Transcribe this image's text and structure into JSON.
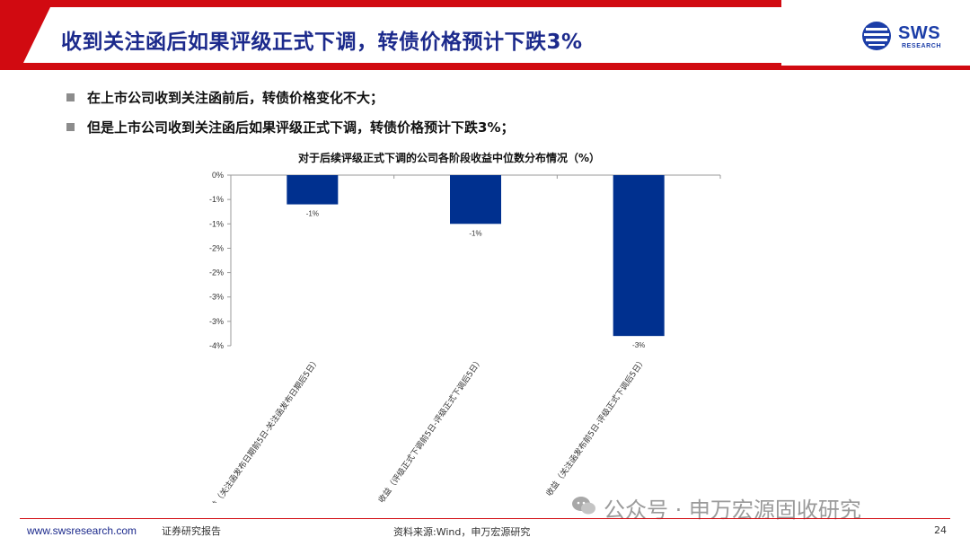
{
  "header": {
    "title": "收到关注函后如果评级正式下调，转债价格预计下跌3%",
    "logo_text": "SWS",
    "logo_sub": "RESEARCH"
  },
  "bullets": [
    "在上市公司收到关注函前后，转债价格变化不大；",
    "但是上市公司收到关注函后如果评级正式下调，转债价格预计下跌3%；"
  ],
  "chart_data": {
    "type": "bar",
    "title": "对于后续评级正式下调的公司各阶段收益中位数分布情况（%）",
    "categories": [
      "收益（关注函发布日期前5日-关注函发布日期后5日）",
      "收益（评级正式下调前5日-评级正式下调后5日）",
      "收益（关注函发布前5日-评级正式下调后5日）"
    ],
    "values": [
      -0.6,
      -1.0,
      -3.3
    ],
    "data_labels": [
      "-1%",
      "-1%",
      "-3%"
    ],
    "y_ticks": [
      "0%",
      "-1%",
      "-1%",
      "-2%",
      "-2%",
      "-3%",
      "-3%",
      "-4%"
    ],
    "ylim": [
      -3.5,
      0
    ],
    "bar_color": "#00308f",
    "grid": false
  },
  "footer": {
    "url": "www.swsresearch.com",
    "report_type": "证券研究报告",
    "source": "资料来源:Wind，申万宏源研究",
    "page": "24",
    "watermark": "公众号 · 申万宏源固收研究"
  },
  "colors": {
    "brand_red": "#d10a11",
    "title_blue": "#1c2a8c",
    "bar_blue": "#00308f"
  }
}
